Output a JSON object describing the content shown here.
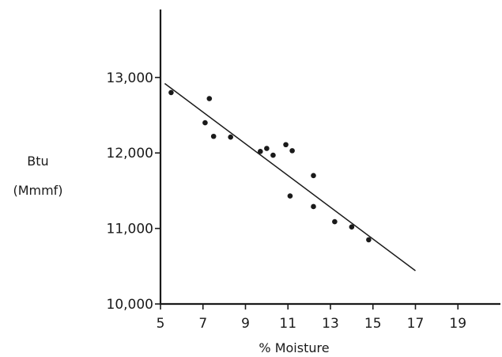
{
  "chart_data": {
    "type": "scatter",
    "xlabel": "% Moisture",
    "ylabel_lines": [
      "Btu",
      "(Mmmf)"
    ],
    "xlim": [
      5,
      21
    ],
    "ylim": [
      10000,
      13900
    ],
    "x_ticks": [
      5,
      7,
      9,
      11,
      13,
      15,
      17,
      19
    ],
    "x_tick_labels": [
      "5",
      "7",
      "9",
      "11",
      "13",
      "15",
      "17",
      "19"
    ],
    "y_ticks": [
      10000,
      11000,
      12000,
      13000
    ],
    "y_tick_labels": [
      "10,000",
      "11,000",
      "12,000",
      "13,000"
    ],
    "grid": false,
    "points": [
      {
        "x": 5.5,
        "y": 12800
      },
      {
        "x": 7.1,
        "y": 12400
      },
      {
        "x": 7.3,
        "y": 12720
      },
      {
        "x": 7.5,
        "y": 12220
      },
      {
        "x": 8.3,
        "y": 12210
      },
      {
        "x": 9.7,
        "y": 12020
      },
      {
        "x": 10.0,
        "y": 12060
      },
      {
        "x": 10.3,
        "y": 11970
      },
      {
        "x": 10.9,
        "y": 12110
      },
      {
        "x": 11.2,
        "y": 12030
      },
      {
        "x": 11.1,
        "y": 11430
      },
      {
        "x": 12.2,
        "y": 11700
      },
      {
        "x": 12.2,
        "y": 11290
      },
      {
        "x": 13.2,
        "y": 11090
      },
      {
        "x": 14.0,
        "y": 11020
      },
      {
        "x": 14.8,
        "y": 10850
      }
    ],
    "fit_line": [
      {
        "x": 5.2,
        "y": 12920
      },
      {
        "x": 17.0,
        "y": 10440
      }
    ]
  }
}
